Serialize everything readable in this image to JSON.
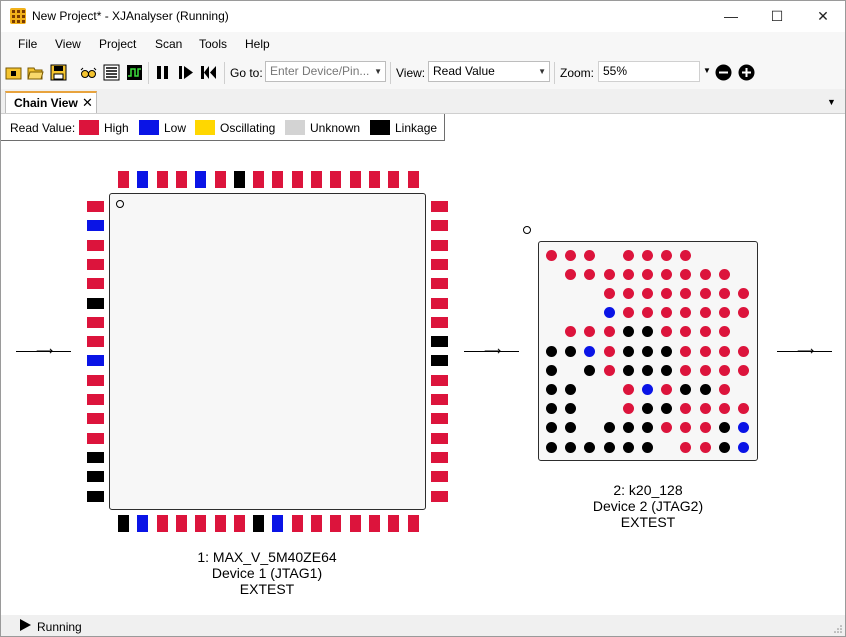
{
  "window": {
    "title": "New Project* - XJAnalyser (Running)"
  },
  "menu": [
    "File",
    "View",
    "Project",
    "Scan",
    "Tools",
    "Help"
  ],
  "toolbar": {
    "goto_label": "Go to:",
    "goto_placeholder": "Enter Device/Pin...",
    "view_label": "View:",
    "view_value": "Read Value",
    "zoom_label": "Zoom:",
    "zoom_value": "55%",
    "icons": [
      "new-project-icon",
      "open-folder-icon",
      "save-icon",
      "glasses-icon",
      "list-icon",
      "waveform-icon",
      "pause-icon",
      "step-icon",
      "rewind-icon",
      "zoom-out-icon",
      "zoom-in-icon"
    ]
  },
  "tab": {
    "label": "Chain View",
    "close": "✕"
  },
  "legend": {
    "title": "Read Value:",
    "items": [
      {
        "label": "High",
        "color": "#dc143c"
      },
      {
        "label": "Low",
        "color": "#0a14e6"
      },
      {
        "label": "Oscillating",
        "color": "#ffd700"
      },
      {
        "label": "Unknown",
        "color": "#d3d3d3"
      },
      {
        "label": "Linkage",
        "color": "#000000"
      }
    ]
  },
  "colors": {
    "H": "#dc143c",
    "L": "#0a14e6",
    "K": "#000000"
  },
  "devices": [
    {
      "name": "1: MAX_V_5M40ZE64",
      "device": "Device 1 (JTAG1)",
      "mode": "EXTEST",
      "pins": {
        "top": [
          "H",
          "L",
          "H",
          "H",
          "L",
          "H",
          "K",
          "H",
          "H",
          "H",
          "H",
          "H",
          "H",
          "H",
          "H",
          "H"
        ],
        "bottom": [
          "K",
          "L",
          "H",
          "H",
          "H",
          "H",
          "H",
          "K",
          "L",
          "H",
          "H",
          "H",
          "H",
          "H",
          "H",
          "H"
        ],
        "left": [
          "H",
          "L",
          "H",
          "H",
          "H",
          "K",
          "H",
          "H",
          "L",
          "H",
          "H",
          "H",
          "H",
          "K",
          "K",
          "K"
        ],
        "right": [
          "H",
          "H",
          "H",
          "H",
          "H",
          "H",
          "H",
          "K",
          "K",
          "H",
          "H",
          "H",
          "H",
          "H",
          "H",
          "H"
        ]
      }
    },
    {
      "name": "2: k20_128",
      "device": "Device 2 (JTAG2)",
      "mode": "EXTEST",
      "balls": [
        "HHH.HHHH...",
        ".HHHHHHHHH.",
        "...HHHHHHHH",
        "...LHHHHHHH",
        ".HHHKKHHHH.",
        "KKLHKKKHHHH",
        "K.KHKKKHHHH",
        "KK..HLHKKH.",
        "KK..HKKHHHH",
        "KK.KKKHHHKL",
        "KKKKKK.HHKL"
      ]
    }
  ],
  "status": {
    "text": "Running"
  }
}
